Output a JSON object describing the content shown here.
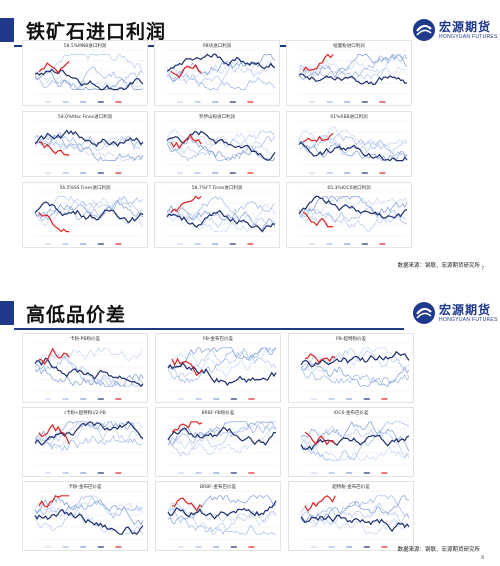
{
  "slides": [
    {
      "title": "铁矿石进口利润",
      "source": "数据来源：钢联、宏源期货研究所",
      "page": "7",
      "charts": [
        {
          "title": "58.5%MNB进口利润"
        },
        {
          "title": "PB块进口利润"
        },
        {
          "title": "纽曼粉进口利润"
        },
        {
          "title": "58.0%Mac Fines进口利润"
        },
        {
          "title": "罗伊山粉进口利润"
        },
        {
          "title": "61%RBB进口利润"
        },
        {
          "title": "56.5%SS Fines进口利润"
        },
        {
          "title": "58.7%FT Fines进口利润"
        },
        {
          "title": "65.3%IOC6进口利润"
        }
      ]
    },
    {
      "title": "高低品价差",
      "source": "数据来源：钢联、宏源期货研究所",
      "page": "8",
      "charts": [
        {
          "title": "卡粉-PB粉价差"
        },
        {
          "title": "PB-金布巴价差"
        },
        {
          "title": "PB-超特粉价差"
        },
        {
          "title": "(卡粉+超特粉)/2-PB"
        },
        {
          "title": "BRBF-PB粉价差"
        },
        {
          "title": "IOC6-金布巴价差"
        },
        {
          "title": "卡粉-金布巴价差"
        },
        {
          "title": "BRBF-金布巴价差"
        },
        {
          "title": "超特粉-金布巴价差"
        }
      ]
    }
  ],
  "logo": {
    "cn": "宏源期货",
    "en": "HONGYUAN FUTURES"
  },
  "colors": {
    "brand": "#1f3a8a",
    "accent_red": "#e02020",
    "dark_line": "#1c2e6e",
    "light_line": "#9fb7e8"
  }
}
